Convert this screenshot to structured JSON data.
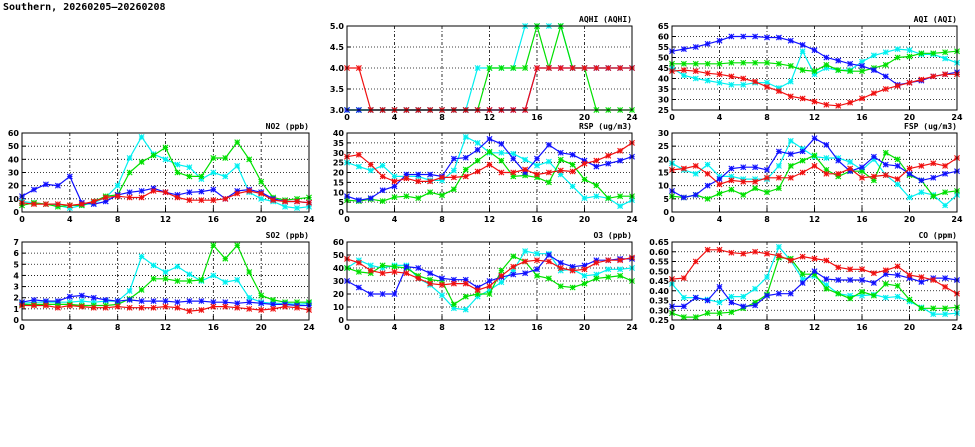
{
  "title": "Southern, 20260205—20260208",
  "series_colors": {
    "blue": "#1010ff",
    "cyan": "#00f0f0",
    "green": "#00e000",
    "red": "#f01010"
  },
  "chart_data": [
    {
      "type": "line",
      "title": "AQHI (AQHI)",
      "ylim": [
        3,
        5
      ],
      "yticks": [
        "3.0",
        "3.5",
        "4.0",
        "4.5",
        "5.0"
      ],
      "xlim": [
        0,
        24
      ],
      "xticks": [
        "0",
        "4",
        "8",
        "12",
        "16",
        "20",
        "24"
      ],
      "grid": true,
      "series": [
        {
          "name": "cyan",
          "values": [
            3,
            3,
            3,
            3,
            3,
            3,
            3,
            3,
            3,
            3,
            3,
            4,
            4,
            4,
            4,
            5,
            5,
            5,
            5,
            4,
            4,
            4,
            4,
            4,
            4
          ]
        },
        {
          "name": "green",
          "values": [
            3,
            3,
            3,
            3,
            3,
            3,
            3,
            3,
            3,
            3,
            3,
            3,
            4,
            4,
            4,
            4,
            5,
            4,
            5,
            4,
            4,
            3,
            3,
            3,
            3
          ]
        },
        {
          "name": "blue",
          "values": [
            3,
            3,
            3,
            3,
            3,
            3,
            3,
            3,
            3,
            3,
            3,
            3,
            3,
            3,
            3,
            3,
            4,
            4,
            4,
            4,
            4,
            4,
            4,
            4,
            4
          ]
        },
        {
          "name": "red",
          "values": [
            4,
            4,
            3,
            3,
            3,
            3,
            3,
            3,
            3,
            3,
            3,
            3,
            3,
            3,
            3,
            3,
            4,
            4,
            4,
            4,
            4,
            4,
            4,
            4,
            4
          ]
        }
      ]
    },
    {
      "type": "line",
      "title": "AQI (AQI)",
      "ylim": [
        25,
        65
      ],
      "yticks": [
        "25",
        "30",
        "35",
        "40",
        "45",
        "50",
        "55",
        "60",
        "65"
      ],
      "xlim": [
        0,
        24
      ],
      "xticks": [
        "0",
        "4",
        "8",
        "12",
        "16",
        "20",
        "24"
      ],
      "grid": true,
      "series": [
        {
          "name": "cyan",
          "values": [
            45,
            41.5,
            40,
            39,
            38,
            37,
            37,
            38,
            38,
            35.5,
            38.5,
            53,
            42,
            45,
            44,
            44,
            48,
            51,
            52.5,
            54,
            53.5,
            51.5,
            51.5,
            49.5,
            47.5
          ]
        },
        {
          "name": "green",
          "values": [
            47,
            47,
            47,
            47,
            47,
            47.5,
            47.5,
            47.5,
            47.5,
            47,
            46,
            44,
            43.5,
            46.5,
            44,
            43.5,
            43.5,
            45,
            46.5,
            50,
            50.5,
            52,
            52,
            52.5,
            53
          ]
        },
        {
          "name": "blue",
          "values": [
            53,
            54,
            55,
            56.5,
            58,
            60,
            60,
            60,
            59.5,
            59.5,
            58,
            56,
            53.5,
            50,
            48.5,
            47,
            46,
            44,
            41,
            37,
            38,
            39,
            41,
            42,
            43
          ]
        },
        {
          "name": "red",
          "values": [
            43.5,
            44,
            43.5,
            42.5,
            42,
            41,
            40,
            38.5,
            36,
            34,
            31.5,
            30.5,
            29,
            27.5,
            27,
            28.5,
            30.5,
            33,
            35,
            36.5,
            38,
            39.5,
            41,
            42,
            42
          ]
        }
      ]
    },
    {
      "type": "line",
      "title": "NO2 (ppb)",
      "ylim": [
        0,
        60
      ],
      "yticks": [
        "0",
        "10",
        "20",
        "30",
        "40",
        "50",
        "60"
      ],
      "xlim": [
        0,
        24
      ],
      "xticks": [
        "0",
        "4",
        "8",
        "12",
        "16",
        "20",
        "24"
      ],
      "grid": true,
      "series": [
        {
          "name": "cyan",
          "values": [
            8,
            7,
            6,
            5,
            3,
            5,
            7,
            11,
            20,
            41,
            57,
            44,
            40,
            36,
            34,
            25,
            30,
            27,
            35,
            15,
            10,
            8,
            4,
            3,
            4
          ]
        },
        {
          "name": "green",
          "values": [
            5,
            7,
            6,
            4,
            5,
            5,
            8,
            12,
            13,
            30,
            38,
            43,
            49,
            30,
            27,
            27,
            41,
            41,
            53,
            40,
            23,
            11,
            9,
            10,
            11
          ]
        },
        {
          "name": "blue",
          "values": [
            12,
            17,
            21,
            20,
            27,
            7,
            6,
            8,
            13,
            15,
            16,
            18,
            15,
            13,
            15,
            15.5,
            17,
            10,
            16,
            17,
            15,
            10,
            8,
            8,
            7
          ]
        },
        {
          "name": "red",
          "values": [
            7,
            6,
            6,
            6,
            5,
            6,
            8,
            11,
            12,
            11,
            11,
            16,
            15,
            11,
            9,
            9,
            9,
            10,
            14,
            16,
            14,
            9,
            8,
            8,
            7
          ]
        }
      ]
    },
    {
      "type": "line",
      "title": "RSP (ug/m3)",
      "ylim": [
        0,
        40
      ],
      "yticks": [
        "0",
        "5",
        "10",
        "15",
        "20",
        "25",
        "30",
        "35",
        "40"
      ],
      "xlim": [
        0,
        24
      ],
      "xticks": [
        "0",
        "4",
        "8",
        "12",
        "16",
        "20",
        "24"
      ],
      "grid": true,
      "series": [
        {
          "name": "cyan",
          "values": [
            25,
            23,
            21,
            23.5,
            18,
            18,
            18,
            16,
            16,
            21,
            38,
            35,
            30,
            30,
            29.5,
            26.5,
            23.5,
            25.5,
            19,
            13,
            7,
            8,
            7,
            3,
            6
          ]
        },
        {
          "name": "green",
          "values": [
            6,
            5.5,
            6.5,
            5.5,
            7.5,
            8,
            7,
            10,
            8.5,
            11.5,
            21.5,
            26,
            30.5,
            26,
            18,
            18.5,
            17.5,
            15,
            26.5,
            24,
            16.5,
            13.5,
            7,
            8,
            8
          ]
        },
        {
          "name": "blue",
          "values": [
            8,
            6,
            7,
            11,
            13,
            19,
            19,
            19,
            18,
            27,
            27.5,
            31.5,
            37,
            34.5,
            27,
            20,
            27,
            34,
            30,
            29,
            26,
            23,
            24.5,
            26,
            28
          ]
        },
        {
          "name": "red",
          "values": [
            28,
            29,
            24,
            18,
            15.5,
            17,
            15.5,
            15.5,
            17.5,
            17.5,
            18,
            20.5,
            24,
            20,
            20,
            21.5,
            19,
            20,
            21,
            20.5,
            24.5,
            26,
            28.5,
            31,
            35
          ]
        }
      ]
    },
    {
      "type": "line",
      "title": "FSP (ug/m3)",
      "ylim": [
        0,
        30
      ],
      "yticks": [
        "0",
        "5",
        "10",
        "15",
        "20",
        "25",
        "30"
      ],
      "xlim": [
        0,
        24
      ],
      "xticks": [
        "0",
        "4",
        "8",
        "12",
        "16",
        "20",
        "24"
      ],
      "grid": true,
      "series": [
        {
          "name": "cyan",
          "values": [
            18.5,
            16,
            14.5,
            18,
            13.5,
            13.5,
            12.5,
            12.5,
            12.5,
            17.5,
            27,
            24,
            21,
            20.5,
            20.5,
            19,
            16,
            20,
            14,
            10.5,
            5.5,
            7.5,
            6.5,
            2.5,
            6.5
          ]
        },
        {
          "name": "green",
          "values": [
            6,
            5.5,
            6.5,
            5,
            7,
            8.5,
            6.5,
            9,
            7.5,
            9,
            17.5,
            19.5,
            21.5,
            16,
            13.5,
            15.5,
            15.5,
            12,
            22.5,
            20,
            14,
            12,
            6,
            7.5,
            8
          ]
        },
        {
          "name": "blue",
          "values": [
            8,
            5.5,
            6.5,
            10,
            12.5,
            16.5,
            17,
            17,
            16,
            23,
            22,
            23,
            28,
            25.5,
            19.5,
            15.5,
            17,
            21,
            18,
            17.5,
            14.5,
            12,
            13,
            14.5,
            15.5
          ]
        },
        {
          "name": "red",
          "values": [
            16,
            16.5,
            17.5,
            14.5,
            10.5,
            12,
            11.5,
            11.5,
            13,
            13,
            13,
            15,
            17.5,
            14.5,
            14.5,
            16.5,
            13,
            13.5,
            14,
            12.5,
            16.5,
            17.5,
            18.5,
            17.5,
            20.5
          ]
        }
      ]
    },
    {
      "type": "line",
      "title": "SO2 (ppb)",
      "ylim": [
        0,
        7
      ],
      "yticks": [
        "0",
        "1",
        "2",
        "3",
        "4",
        "5",
        "6",
        "7"
      ],
      "xlim": [
        0,
        24
      ],
      "xticks": [
        "0",
        "4",
        "8",
        "12",
        "16",
        "20",
        "24"
      ],
      "grid": true,
      "series": [
        {
          "name": "cyan",
          "values": [
            1.5,
            1.6,
            1.6,
            1.6,
            1.6,
            1.7,
            1.6,
            1.7,
            1.7,
            2.6,
            5.7,
            4.9,
            4.3,
            4.8,
            4.1,
            3.5,
            4.0,
            3.4,
            3.6,
            2.0,
            1.6,
            1.5,
            1.5,
            1.4,
            1.5
          ]
        },
        {
          "name": "green",
          "values": [
            1.4,
            1.4,
            1.4,
            1.4,
            1.4,
            1.3,
            1.3,
            1.3,
            1.4,
            1.9,
            2.7,
            3.7,
            3.7,
            3.5,
            3.5,
            3.6,
            6.7,
            5.5,
            6.7,
            4.3,
            2.2,
            1.8,
            1.6,
            1.6,
            1.6
          ]
        },
        {
          "name": "blue",
          "values": [
            1.6,
            1.8,
            1.7,
            1.7,
            2.1,
            2.2,
            2.0,
            1.8,
            1.7,
            1.8,
            1.7,
            1.7,
            1.7,
            1.6,
            1.7,
            1.7,
            1.6,
            1.6,
            1.5,
            1.6,
            1.5,
            1.4,
            1.4,
            1.3,
            1.3
          ]
        },
        {
          "name": "red",
          "values": [
            1.3,
            1.3,
            1.3,
            1.1,
            1.3,
            1.2,
            1.1,
            1.1,
            1.2,
            1.1,
            1.1,
            1.1,
            1.2,
            1.1,
            0.8,
            0.9,
            1.2,
            1.2,
            1.1,
            1.0,
            0.9,
            1.0,
            1.2,
            1.1,
            0.9
          ]
        }
      ]
    },
    {
      "type": "line",
      "title": "O3 (ppb)",
      "ylim": [
        0,
        60
      ],
      "yticks": [
        "0",
        "10",
        "20",
        "30",
        "40",
        "50",
        "60"
      ],
      "xlim": [
        0,
        24
      ],
      "xticks": [
        "0",
        "4",
        "8",
        "12",
        "16",
        "20",
        "24"
      ],
      "grid": true,
      "series": [
        {
          "name": "cyan",
          "values": [
            40,
            46,
            42,
            40,
            42,
            42,
            32,
            27,
            19,
            9,
            8,
            18,
            23,
            29,
            38,
            53,
            51,
            51,
            38,
            39,
            34,
            35,
            39,
            39,
            40
          ]
        },
        {
          "name": "green",
          "values": [
            40,
            37,
            36,
            42,
            41,
            40,
            34,
            31,
            30,
            12,
            18,
            20,
            20,
            38,
            49,
            45,
            34,
            32,
            26,
            25,
            28,
            32,
            33,
            34,
            30
          ]
        },
        {
          "name": "blue",
          "values": [
            30,
            25,
            20,
            20,
            20,
            41,
            40,
            36,
            32,
            31,
            31,
            25,
            30,
            33,
            35,
            36,
            39,
            50,
            44,
            41,
            42,
            46,
            46,
            47,
            47
          ]
        },
        {
          "name": "red",
          "values": [
            47,
            44,
            38,
            36,
            37,
            36,
            32,
            28,
            27,
            28,
            28,
            23,
            26,
            34,
            41,
            45,
            46,
            45,
            40,
            38,
            39,
            44,
            46,
            46,
            48
          ]
        }
      ]
    },
    {
      "type": "line",
      "title": "CO (ppm)",
      "ylim": [
        0.25,
        0.65
      ],
      "yticks": [
        "0.25",
        "0.30",
        "0.35",
        "0.40",
        "0.45",
        "0.50",
        "0.55",
        "0.60",
        "0.65"
      ],
      "xlim": [
        0,
        24
      ],
      "xticks": [
        "0",
        "4",
        "8",
        "12",
        "16",
        "20",
        "24"
      ],
      "grid": true,
      "series": [
        {
          "name": "cyan",
          "values": [
            0.435,
            0.365,
            0.365,
            0.355,
            0.34,
            0.37,
            0.37,
            0.41,
            0.47,
            0.625,
            0.555,
            0.46,
            0.475,
            0.43,
            0.385,
            0.375,
            0.375,
            0.38,
            0.365,
            0.37,
            0.345,
            0.315,
            0.28,
            0.28,
            0.285
          ]
        },
        {
          "name": "green",
          "values": [
            0.285,
            0.265,
            0.265,
            0.285,
            0.285,
            0.29,
            0.31,
            0.34,
            0.38,
            0.57,
            0.565,
            0.485,
            0.485,
            0.41,
            0.385,
            0.36,
            0.395,
            0.375,
            0.435,
            0.425,
            0.355,
            0.31,
            0.31,
            0.31,
            0.315
          ]
        },
        {
          "name": "blue",
          "values": [
            0.32,
            0.32,
            0.365,
            0.35,
            0.42,
            0.34,
            0.32,
            0.325,
            0.375,
            0.385,
            0.385,
            0.44,
            0.5,
            0.46,
            0.455,
            0.455,
            0.455,
            0.44,
            0.485,
            0.48,
            0.465,
            0.445,
            0.465,
            0.465,
            0.455
          ]
        },
        {
          "name": "red",
          "values": [
            0.46,
            0.465,
            0.55,
            0.61,
            0.61,
            0.595,
            0.59,
            0.6,
            0.59,
            0.58,
            0.555,
            0.575,
            0.565,
            0.555,
            0.52,
            0.51,
            0.51,
            0.49,
            0.505,
            0.525,
            0.48,
            0.47,
            0.455,
            0.42,
            0.385
          ]
        }
      ]
    }
  ]
}
